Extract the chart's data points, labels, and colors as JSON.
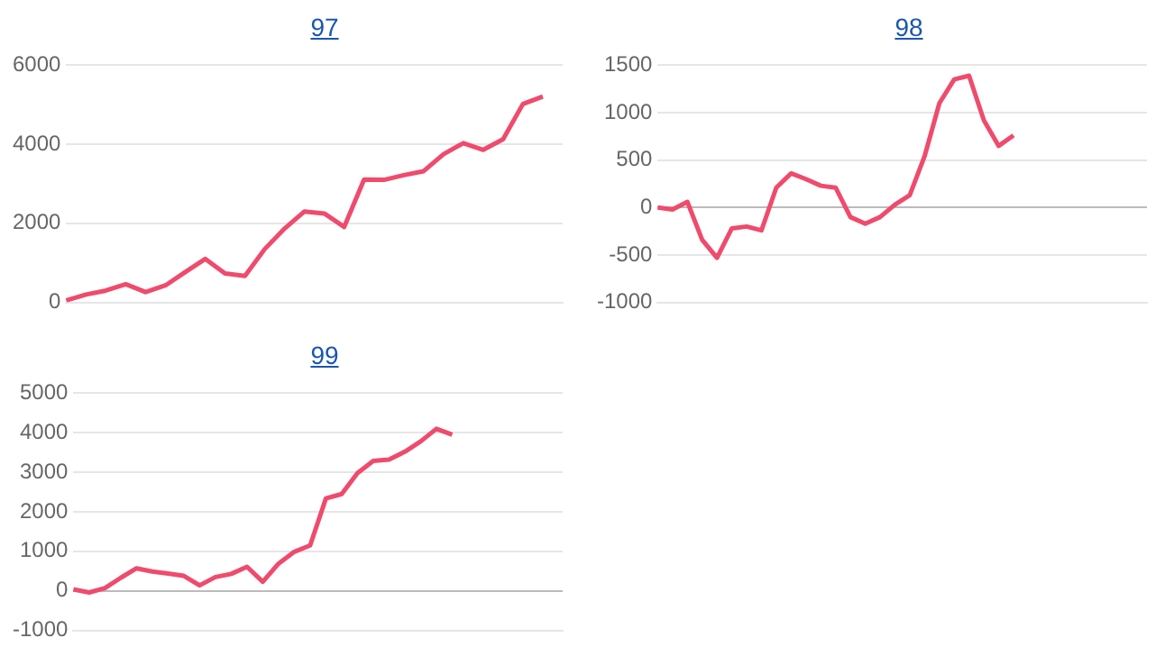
{
  "chart_data": [
    {
      "type": "line",
      "title": "97",
      "categories": [
        null,
        null,
        null,
        null,
        null,
        null,
        null,
        null,
        null,
        null,
        null,
        null,
        null,
        null,
        null,
        null,
        null,
        null,
        null,
        null,
        null,
        null,
        null,
        null,
        null,
        null
      ],
      "series": [
        {
          "color": "#ef4b6c",
          "values": [
            50,
            200,
            300,
            460,
            260,
            430,
            770,
            1100,
            730,
            670,
            1350,
            1870,
            2300,
            2250,
            1910,
            3110,
            3100,
            3220,
            3320,
            3750,
            4030,
            3860,
            4130,
            5020,
            5210,
            null
          ]
        }
      ],
      "ylim": [
        0,
        6000
      ],
      "yticks": [
        0,
        2000,
        4000,
        6000
      ],
      "grid": "y",
      "tick_labels": "y",
      "marker": "none",
      "line_style": "solid"
    },
    {
      "type": "line",
      "title": "98",
      "categories": [
        null,
        null,
        null,
        null,
        null,
        null,
        null,
        null,
        null,
        null,
        null,
        null,
        null,
        null,
        null,
        null,
        null,
        null,
        null,
        null,
        null,
        null,
        null,
        null,
        null,
        null,
        null,
        null,
        null,
        null,
        null,
        null,
        null,
        null
      ],
      "series": [
        {
          "color": "#ef4b6c",
          "values": [
            0,
            -20,
            60,
            -340,
            -530,
            -220,
            -200,
            -240,
            210,
            360,
            300,
            230,
            210,
            -100,
            -170,
            -100,
            30,
            130,
            540,
            1100,
            1350,
            1390,
            920,
            650,
            760,
            null,
            null,
            null,
            null,
            null,
            null,
            null,
            null,
            null
          ]
        }
      ],
      "ylim": [
        -1000,
        1500
      ],
      "yticks": [
        -1000,
        -500,
        0,
        500,
        1000,
        1500
      ],
      "grid": "y",
      "tick_labels": "y",
      "marker": "none",
      "line_style": "solid"
    },
    {
      "type": "line",
      "title": "99",
      "categories": [
        null,
        null,
        null,
        null,
        null,
        null,
        null,
        null,
        null,
        null,
        null,
        null,
        null,
        null,
        null,
        null,
        null,
        null,
        null,
        null,
        null,
        null,
        null,
        null,
        null,
        null,
        null,
        null,
        null,
        null,
        null,
        null
      ],
      "series": [
        {
          "color": "#ef4b6c",
          "values": [
            40,
            -40,
            70,
            330,
            570,
            490,
            440,
            380,
            140,
            350,
            430,
            610,
            230,
            690,
            990,
            1150,
            2340,
            2450,
            2980,
            3290,
            3320,
            3520,
            3780,
            4100,
            3950,
            null,
            null,
            null,
            null,
            null,
            null,
            null
          ]
        }
      ],
      "ylim": [
        -1000,
        5000
      ],
      "yticks": [
        -1000,
        0,
        1000,
        2000,
        3000,
        4000,
        5000
      ],
      "grid": "y",
      "tick_labels": "y",
      "marker": "none",
      "line_style": "solid"
    }
  ]
}
